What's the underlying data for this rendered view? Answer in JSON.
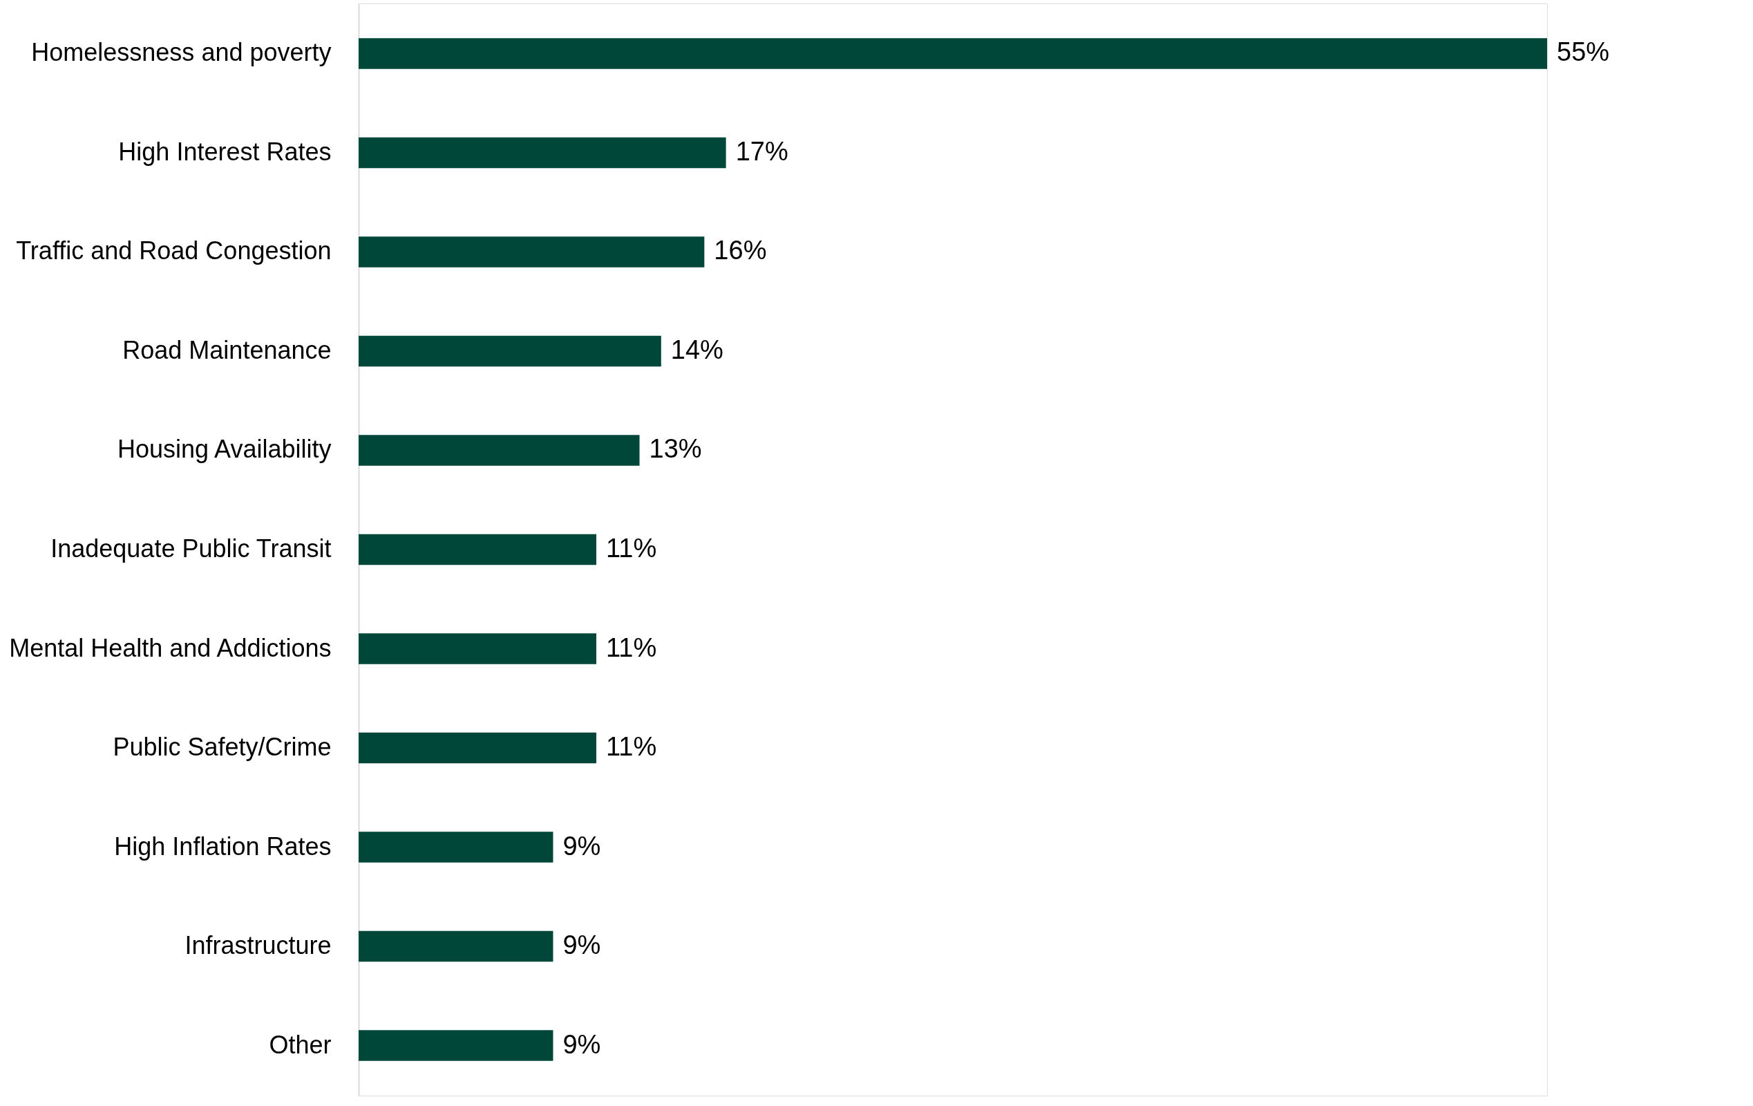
{
  "chart_data": {
    "type": "bar",
    "orientation": "horizontal",
    "categories": [
      "Homelessness and poverty",
      "High Interest Rates",
      "Traffic and Road Congestion",
      "Road Maintenance",
      "Housing Availability",
      "Inadequate Public Transit",
      "Mental Health and Addictions",
      "Public Safety/Crime",
      "High Inflation Rates",
      "Infrastructure",
      "Other"
    ],
    "values": [
      55,
      17,
      16,
      14,
      13,
      11,
      11,
      11,
      9,
      9,
      9
    ],
    "value_labels": [
      "55%",
      "17%",
      "16%",
      "14%",
      "13%",
      "11%",
      "11%",
      "11%",
      "9%",
      "9%",
      "9%"
    ],
    "color": "#00473a"
  }
}
